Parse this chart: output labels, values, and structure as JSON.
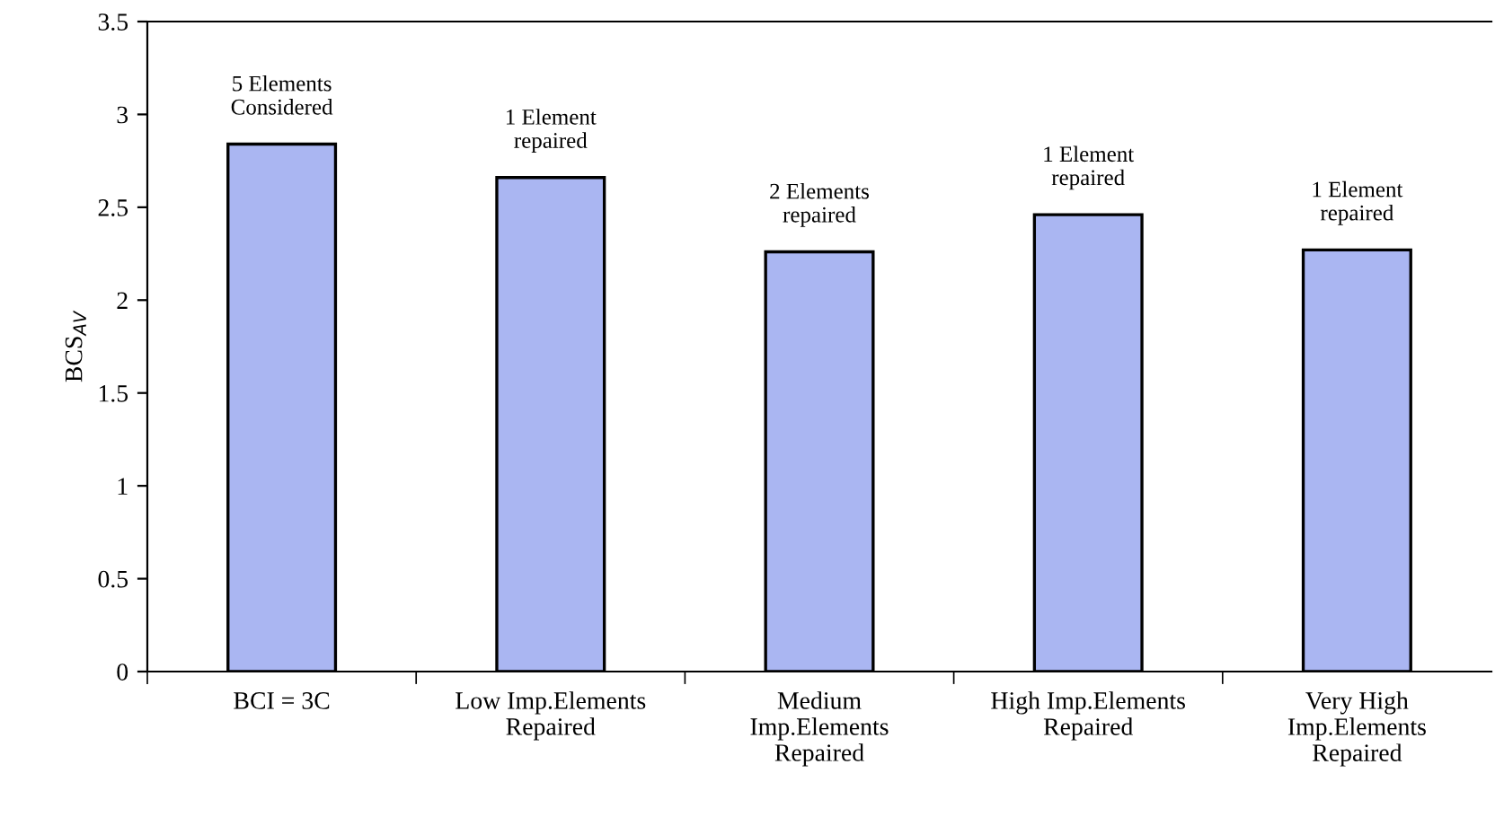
{
  "chart_data": {
    "type": "bar",
    "ylabel": "BCS$_{AV}$",
    "categories": [
      "BCI = 3C",
      "Low Imp.Elements\nRepaired",
      "Medium\nImp.Elements\nRepaired",
      "High Imp.Elements\nRepaired",
      "Very High\nImp.Elements\nRepaired"
    ],
    "values": [
      2.84,
      2.66,
      2.26,
      2.46,
      2.27
    ],
    "color": "#aab6f2",
    "ylim": [
      0,
      3.5
    ],
    "yticks": [
      0,
      0.5,
      1,
      1.5,
      2,
      2.5,
      3,
      3.5
    ],
    "grid": false,
    "annotations": [
      {
        "text": "5 Elements\nConsidered",
        "x": "BCI = 3C",
        "y": 2.84
      },
      {
        "text": "1 Element\nrepaired",
        "x": "Low Imp.Elements\nRepaired",
        "y": 2.66
      },
      {
        "text": "2 Elements\nrepaired",
        "x": "Medium\nImp.Elements\nRepaired",
        "y": 2.26
      },
      {
        "text": "1 Element\nrepaired",
        "x": "High Imp.Elements\nRepaired",
        "y": 2.46
      },
      {
        "text": "1 Element\nrepaired",
        "x": "Very High\nImp.Elements\nRepaired",
        "y": 2.27
      }
    ]
  }
}
